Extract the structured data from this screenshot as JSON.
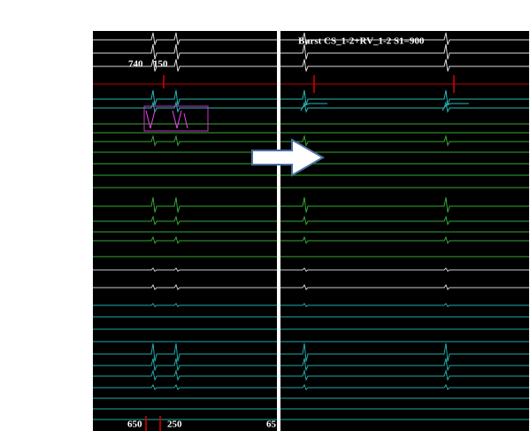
{
  "left_panel": {
    "labels": [
      "740",
      "150"
    ],
    "bottom_labels": [
      "650",
      "250",
      "65"
    ]
  },
  "right_panel": {
    "title": "Burst CS_1-2+RV_1-2 S1=900"
  }
}
